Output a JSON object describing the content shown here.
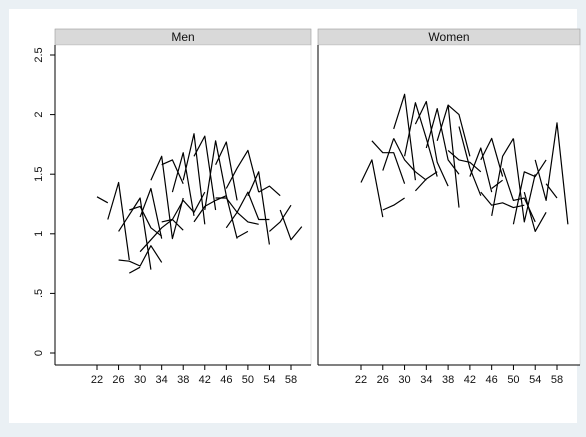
{
  "chart_data": {
    "type": "line",
    "layout": "two-panel spaghetti plot, shared y axis",
    "ylim": [
      0,
      2.5
    ],
    "yticks": [
      0,
      0.5,
      1,
      1.5,
      2,
      2.5
    ],
    "ytick_labels": [
      "0",
      ".5",
      "1",
      "1.5",
      "2",
      "2.5"
    ],
    "xlim": [
      18,
      60
    ],
    "xticks": [
      22,
      26,
      30,
      34,
      38,
      42,
      46,
      50,
      54,
      58
    ],
    "xtick_labels": [
      "22",
      "26",
      "30",
      "34",
      "38",
      "42",
      "46",
      "50",
      "54",
      "58"
    ],
    "grid": false,
    "line_color": "#000000",
    "panels": [
      {
        "title": "Men",
        "series": [
          {
            "x": [
              22,
              24
            ],
            "y": [
              1.31,
              1.26
            ]
          },
          {
            "x": [
              24,
              26,
              28
            ],
            "y": [
              1.12,
              1.43,
              0.78
            ]
          },
          {
            "x": [
              26,
              30,
              32
            ],
            "y": [
              1.02,
              1.3,
              0.7
            ]
          },
          {
            "x": [
              26,
              28,
              30,
              32,
              34
            ],
            "y": [
              0.78,
              0.77,
              0.73,
              0.9,
              0.76
            ]
          },
          {
            "x": [
              28,
              30
            ],
            "y": [
              0.67,
              0.72
            ]
          },
          {
            "x": [
              28,
              30,
              32,
              34
            ],
            "y": [
              1.2,
              1.23,
              1.05,
              0.98
            ]
          },
          {
            "x": [
              30,
              32,
              34
            ],
            "y": [
              1.14,
              1.38,
              0.96
            ]
          },
          {
            "x": [
              30,
              32,
              34,
              36
            ],
            "y": [
              0.85,
              0.95,
              1.05,
              1.12
            ]
          },
          {
            "x": [
              32,
              34,
              36,
              38
            ],
            "y": [
              1.45,
              1.65,
              0.96,
              1.3
            ]
          },
          {
            "x": [
              34,
              36,
              38
            ],
            "y": [
              1.1,
              1.12,
              1.03
            ]
          },
          {
            "x": [
              34,
              36,
              38
            ],
            "y": [
              1.58,
              1.62,
              1.42
            ]
          },
          {
            "x": [
              36,
              38,
              40
            ],
            "y": [
              1.35,
              1.68,
              1.15
            ]
          },
          {
            "x": [
              36,
              38,
              40,
              42
            ],
            "y": [
              1.12,
              1.28,
              1.18,
              1.35
            ]
          },
          {
            "x": [
              38,
              40,
              42
            ],
            "y": [
              1.45,
              1.84,
              1.08
            ]
          },
          {
            "x": [
              40,
              42,
              44
            ],
            "y": [
              1.65,
              1.82,
              1.2
            ]
          },
          {
            "x": [
              40,
              42,
              44,
              46
            ],
            "y": [
              1.1,
              1.23,
              1.28,
              1.32
            ]
          },
          {
            "x": [
              42,
              44,
              46,
              48
            ],
            "y": [
              1.2,
              1.78,
              1.32,
              0.96
            ]
          },
          {
            "x": [
              44,
              46,
              48
            ],
            "y": [
              1.58,
              1.77,
              1.28
            ]
          },
          {
            "x": [
              44,
              46,
              48,
              50,
              52
            ],
            "y": [
              1.3,
              1.3,
              1.18,
              1.1,
              1.08
            ]
          },
          {
            "x": [
              46,
              48,
              50,
              52
            ],
            "y": [
              1.38,
              1.55,
              1.7,
              1.35
            ]
          },
          {
            "x": [
              46,
              48,
              50,
              52,
              54
            ],
            "y": [
              1.05,
              1.18,
              1.35,
              1.12,
              1.12
            ]
          },
          {
            "x": [
              48,
              50
            ],
            "y": [
              0.97,
              1.02
            ]
          },
          {
            "x": [
              50,
              52,
              54
            ],
            "y": [
              1.32,
              1.52,
              0.91
            ]
          },
          {
            "x": [
              52,
              54,
              56
            ],
            "y": [
              1.35,
              1.4,
              1.32
            ]
          },
          {
            "x": [
              54,
              56,
              58
            ],
            "y": [
              1.02,
              1.1,
              1.24
            ]
          },
          {
            "x": [
              56,
              58,
              60
            ],
            "y": [
              1.2,
              0.95,
              1.06
            ]
          }
        ]
      },
      {
        "title": "Women",
        "series": [
          {
            "x": [
              22,
              24,
              26
            ],
            "y": [
              1.43,
              1.62,
              1.14
            ]
          },
          {
            "x": [
              26,
              28,
              30
            ],
            "y": [
              1.2,
              1.24,
              1.3
            ]
          },
          {
            "x": [
              24,
              26,
              28,
              30
            ],
            "y": [
              1.78,
              1.68,
              1.68,
              1.42
            ]
          },
          {
            "x": [
              26,
              28
            ],
            "y": [
              1.53,
              1.8
            ]
          },
          {
            "x": [
              28,
              30,
              32
            ],
            "y": [
              1.88,
              2.17,
              1.45
            ]
          },
          {
            "x": [
              28,
              30,
              32,
              34
            ],
            "y": [
              1.8,
              1.62,
              1.52,
              1.45
            ]
          },
          {
            "x": [
              30,
              32,
              34,
              36
            ],
            "y": [
              1.65,
              2.1,
              1.8,
              1.48
            ]
          },
          {
            "x": [
              32,
              34,
              36
            ],
            "y": [
              1.36,
              1.46,
              1.52
            ]
          },
          {
            "x": [
              32,
              34,
              36,
              38
            ],
            "y": [
              1.92,
              2.11,
              1.6,
              1.4
            ]
          },
          {
            "x": [
              34,
              36,
              38,
              40
            ],
            "y": [
              1.72,
              2.05,
              1.62,
              1.5
            ]
          },
          {
            "x": [
              36,
              38,
              40
            ],
            "y": [
              1.78,
              2.08,
              1.22
            ]
          },
          {
            "x": [
              38,
              40,
              42
            ],
            "y": [
              2.08,
              2.0,
              1.65
            ]
          },
          {
            "x": [
              38,
              40,
              42,
              44
            ],
            "y": [
              1.7,
              1.62,
              1.6,
              1.52
            ]
          },
          {
            "x": [
              40,
              42,
              44
            ],
            "y": [
              1.9,
              1.55,
              1.32
            ]
          },
          {
            "x": [
              42,
              44,
              46
            ],
            "y": [
              1.48,
              1.72,
              1.35
            ]
          },
          {
            "x": [
              44,
              46,
              48
            ],
            "y": [
              1.62,
              1.8,
              1.48
            ]
          },
          {
            "x": [
              44,
              46,
              48,
              50,
              52
            ],
            "y": [
              1.35,
              1.24,
              1.26,
              1.22,
              1.24
            ]
          },
          {
            "x": [
              46,
              48
            ],
            "y": [
              1.38,
              1.45
            ]
          },
          {
            "x": [
              46,
              48,
              50
            ],
            "y": [
              1.15,
              1.65,
              1.8
            ]
          },
          {
            "x": [
              48,
              50,
              52,
              54
            ],
            "y": [
              1.55,
              1.28,
              1.3,
              1.1
            ]
          },
          {
            "x": [
              50,
              52,
              54
            ],
            "y": [
              1.8,
              1.1,
              1.5
            ]
          },
          {
            "x": [
              50,
              52,
              54,
              56
            ],
            "y": [
              1.08,
              1.52,
              1.48,
              1.62
            ]
          },
          {
            "x": [
              52,
              54,
              56
            ],
            "y": [
              1.35,
              1.02,
              1.18
            ]
          },
          {
            "x": [
              54,
              56,
              58,
              60
            ],
            "y": [
              1.62,
              1.28,
              1.93,
              1.08
            ]
          },
          {
            "x": [
              56,
              58
            ],
            "y": [
              1.42,
              1.3
            ]
          }
        ]
      }
    ]
  }
}
